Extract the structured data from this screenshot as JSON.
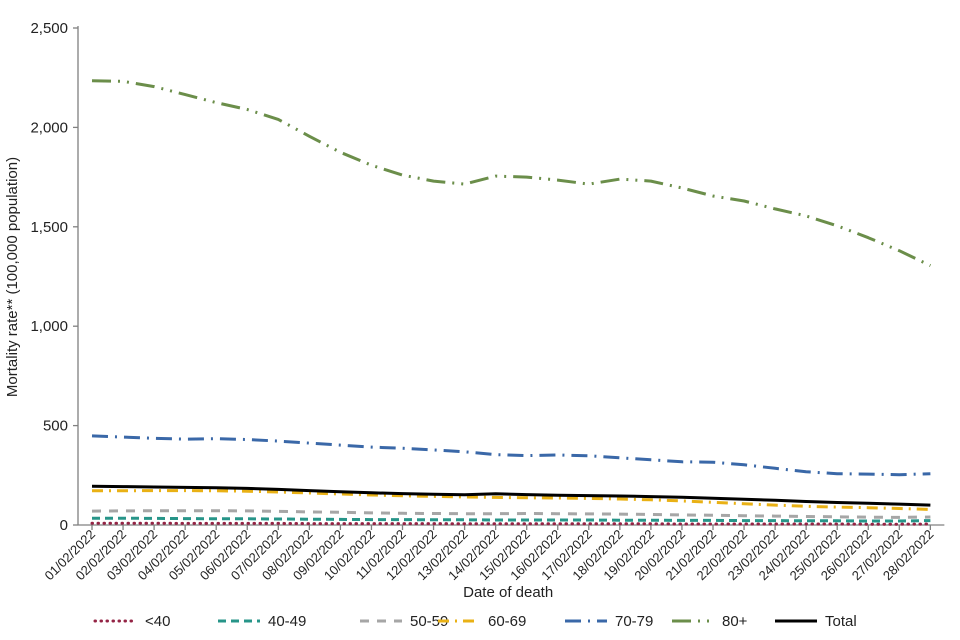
{
  "chart_data": {
    "type": "line",
    "title": "",
    "xlabel": "Date of death",
    "ylabel": "Mortality rate** (100,000 population)",
    "ylim": [
      0,
      2500
    ],
    "ytick_step": 500,
    "ytick_labels": [
      "0",
      "500",
      "1,000",
      "1,500",
      "2,000",
      "2,500"
    ],
    "grid": false,
    "legend_position": "bottom",
    "x": [
      "01/02/2022",
      "02/02/2022",
      "03/02/2022",
      "04/02/2022",
      "05/02/2022",
      "06/02/2022",
      "07/02/2022",
      "08/02/2022",
      "09/02/2022",
      "10/02/2022",
      "11/02/2022",
      "12/02/2022",
      "13/02/2022",
      "14/02/2022",
      "15/02/2022",
      "16/02/2022",
      "17/02/2022",
      "18/02/2022",
      "19/02/2022",
      "20/02/2022",
      "21/02/2022",
      "22/02/2022",
      "23/02/2022",
      "24/02/2022",
      "25/02/2022",
      "26/02/2022",
      "27/02/2022",
      "28/02/2022"
    ],
    "series": [
      {
        "name": "<40",
        "color": "#942445",
        "dash": "dotted",
        "values": [
          9,
          9,
          9,
          8,
          8,
          8,
          8,
          7,
          7,
          7,
          7,
          7,
          6,
          6,
          6,
          6,
          6,
          6,
          6,
          5,
          5,
          5,
          5,
          5,
          5,
          4,
          4,
          5
        ]
      },
      {
        "name": "40-49",
        "color": "#279589",
        "dash": "dashed",
        "values": [
          34,
          34,
          33,
          32,
          31,
          31,
          30,
          29,
          28,
          27,
          27,
          26,
          26,
          25,
          25,
          25,
          25,
          24,
          24,
          23,
          23,
          22,
          22,
          21,
          21,
          20,
          20,
          22
        ]
      },
      {
        "name": "50-59",
        "color": "#A6A6A6",
        "dash": "dashed-wide",
        "values": [
          70,
          71,
          72,
          72,
          72,
          71,
          69,
          66,
          64,
          61,
          59,
          58,
          57,
          57,
          58,
          57,
          56,
          55,
          53,
          51,
          49,
          47,
          45,
          43,
          41,
          39,
          38,
          40
        ]
      },
      {
        "name": "60-69",
        "color": "#E9B115",
        "dash": "dash-dot",
        "values": [
          172,
          172,
          173,
          173,
          172,
          170,
          166,
          161,
          156,
          151,
          147,
          144,
          141,
          139,
          137,
          136,
          134,
          131,
          127,
          121,
          114,
          107,
          100,
          94,
          90,
          87,
          83,
          78
        ]
      },
      {
        "name": "70-79",
        "color": "#3A68A8",
        "dash": "long-dash-dot",
        "values": [
          448,
          442,
          436,
          432,
          434,
          430,
          422,
          412,
          402,
          392,
          386,
          378,
          368,
          354,
          349,
          352,
          348,
          338,
          328,
          318,
          316,
          303,
          285,
          268,
          258,
          256,
          253,
          258
        ]
      },
      {
        "name": "80+",
        "color": "#6B8E4A",
        "dash": "long-dash-dot-dot",
        "values": [
          2235,
          2232,
          2205,
          2165,
          2125,
          2090,
          2040,
          1955,
          1875,
          1810,
          1760,
          1730,
          1715,
          1755,
          1750,
          1735,
          1715,
          1740,
          1730,
          1695,
          1655,
          1630,
          1590,
          1555,
          1505,
          1445,
          1380,
          1305
        ]
      },
      {
        "name": "Total",
        "color": "#000000",
        "dash": "solid",
        "values": [
          195,
          193,
          191,
          189,
          187,
          184,
          179,
          173,
          167,
          162,
          158,
          155,
          152,
          157,
          153,
          150,
          148,
          146,
          143,
          140,
          135,
          130,
          124,
          118,
          113,
          109,
          105,
          100
        ]
      }
    ]
  }
}
